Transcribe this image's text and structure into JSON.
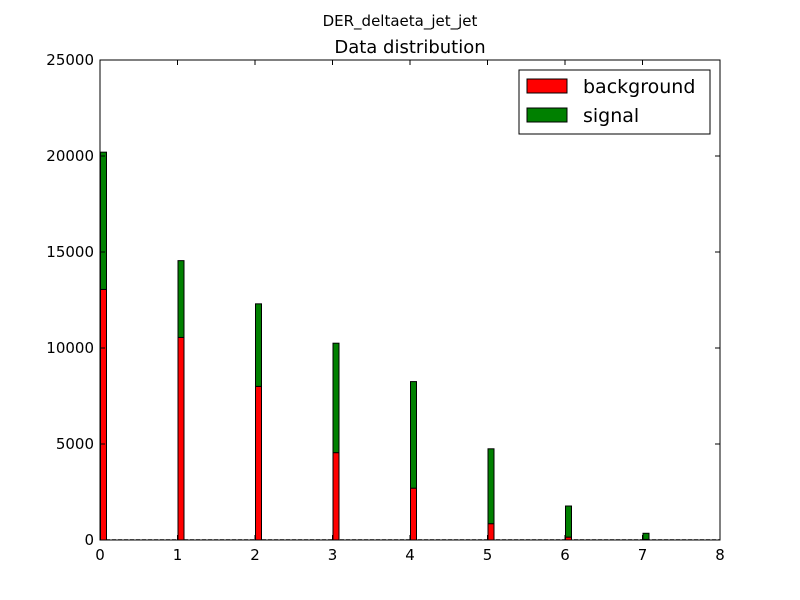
{
  "chart_data": {
    "type": "bar",
    "stacked": true,
    "suptitle": "DER_deltaeta_jet_jet",
    "title": "Data distribution",
    "xlabel": "",
    "ylabel": "",
    "xlim": [
      0,
      8
    ],
    "ylim": [
      0,
      25000
    ],
    "x_ticks": [
      "0",
      "1",
      "2",
      "3",
      "4",
      "5",
      "6",
      "7",
      "8"
    ],
    "y_ticks": [
      "0",
      "5000",
      "10000",
      "15000",
      "20000",
      "25000"
    ],
    "x": [
      0,
      1,
      2,
      3,
      4,
      5,
      6,
      7
    ],
    "series": [
      {
        "name": "background",
        "color": "#ff0000",
        "values": [
          13050,
          10550,
          8000,
          4550,
          2700,
          850,
          150,
          30
        ]
      },
      {
        "name": "signal",
        "color": "#008000",
        "values": [
          7150,
          4000,
          4300,
          5700,
          5550,
          3900,
          1620,
          320
        ]
      }
    ],
    "grid": false,
    "legend_position": "top-right"
  }
}
